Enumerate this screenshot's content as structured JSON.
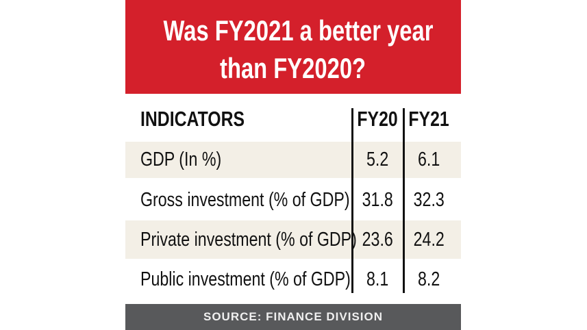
{
  "title_line1": "Was FY2021 a better year",
  "title_line2": "than FY2020?",
  "colors": {
    "header_bg": "#d4202b",
    "row_alt_bg": "#f3efe6",
    "footer_bg": "#58595b"
  },
  "chart_data": {
    "type": "table",
    "title": "Was FY2021 a better year than FY2020?",
    "columns": [
      "INDICATORS",
      "FY20",
      "FY21"
    ],
    "rows": [
      {
        "indicator": "GDP (In %)",
        "fy20": "5.2",
        "fy21": "6.1"
      },
      {
        "indicator": "Gross investment (% of GDP)",
        "fy20": "31.8",
        "fy21": "32.3"
      },
      {
        "indicator": "Private investment (% of GDP)",
        "fy20": "23.6",
        "fy21": "24.2"
      },
      {
        "indicator": "Public investment (% of GDP)",
        "fy20": "8.1",
        "fy21": "8.2"
      }
    ]
  },
  "source": "SOURCE: FINANCE DIVISION"
}
